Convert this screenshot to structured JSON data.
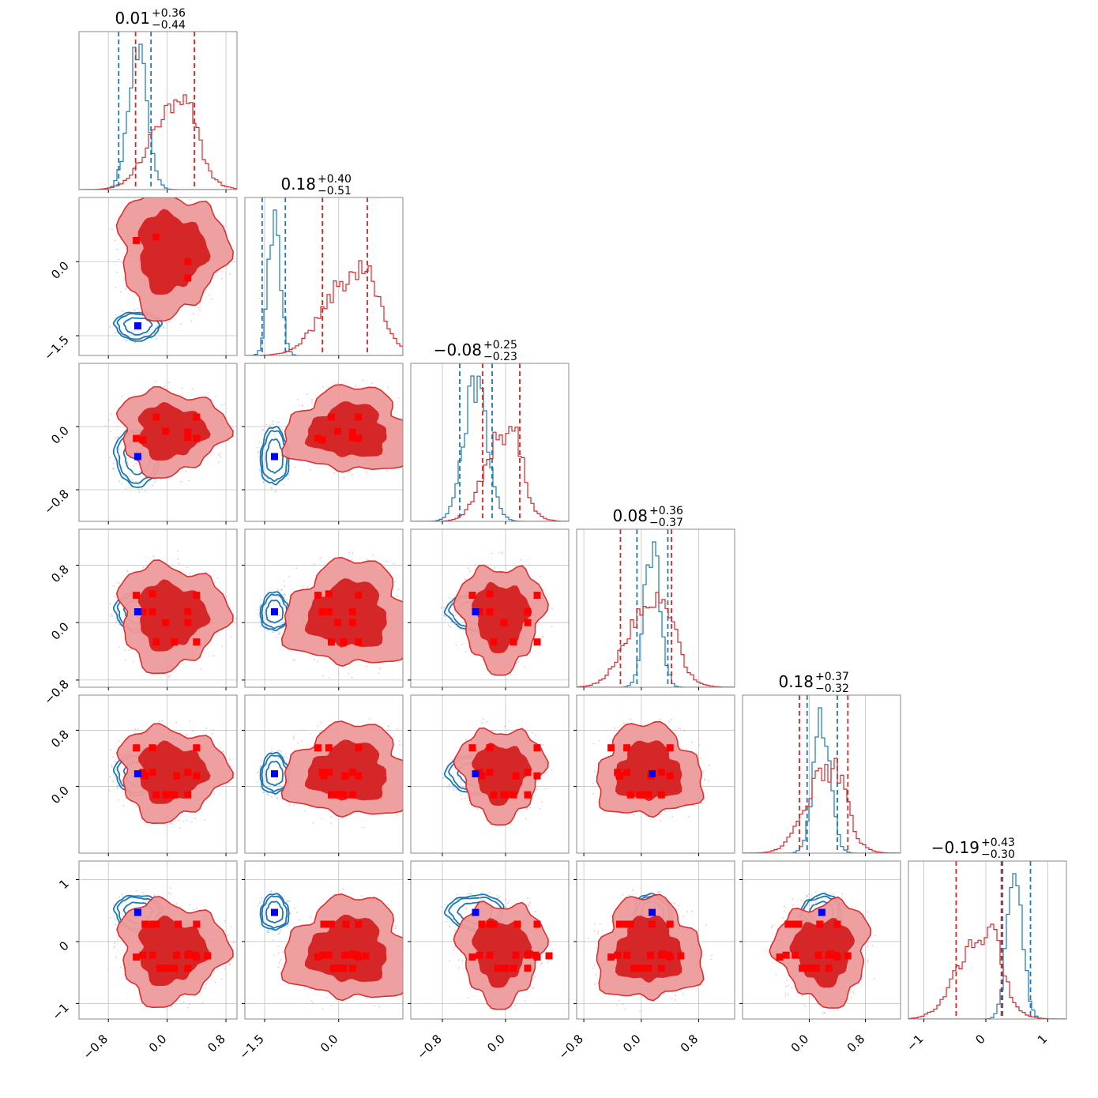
{
  "colors": {
    "blue": "#1f77b4",
    "blue_marker": "#0000ff",
    "red": "#d62728",
    "red_fill_light": "#ee9a9a",
    "red_fill_dark": "#d62728",
    "grid": "#c0c0c0",
    "frame": "#888888"
  },
  "chart_data": {
    "type": "corner",
    "n_params": 6,
    "titles": [
      {
        "main": "0.01",
        "plus": "+0.36",
        "minus": "−0.44"
      },
      {
        "main": "0.18",
        "plus": "+0.40",
        "minus": "−0.51"
      },
      {
        "main": "−0.08",
        "plus": "+0.25",
        "minus": "−0.23"
      },
      {
        "main": "0.08",
        "plus": "+0.36",
        "minus": "−0.37"
      },
      {
        "main": "0.18",
        "plus": "+0.37",
        "minus": "−0.32"
      },
      {
        "main": "−0.19",
        "plus": "+0.43",
        "minus": "−0.30"
      }
    ],
    "axes": [
      {
        "range": [
          -1.2,
          0.95
        ],
        "ticks": [
          -0.8,
          0.0,
          0.8
        ],
        "tick_labels": [
          "−0.8",
          "0.0",
          "0.8"
        ]
      },
      {
        "range": [
          -1.9,
          1.3
        ],
        "ticks": [
          -1.5,
          0.0
        ],
        "tick_labels": [
          "−1.5",
          "0.0"
        ]
      },
      {
        "range": [
          -1.2,
          0.8
        ],
        "ticks": [
          -0.8,
          0.0
        ],
        "tick_labels": [
          "−0.8",
          "0.0"
        ]
      },
      {
        "range": [
          -0.9,
          1.3
        ],
        "ticks": [
          -0.8,
          0.0,
          0.8
        ],
        "tick_labels": [
          "−0.8",
          "0.0",
          "0.8"
        ]
      },
      {
        "range": [
          -0.95,
          1.3
        ],
        "ticks": [
          0.0,
          0.8
        ],
        "tick_labels": [
          "0.0",
          "0.8"
        ]
      },
      {
        "range": [
          -1.25,
          1.3
        ],
        "ticks": [
          -1,
          0,
          1
        ],
        "tick_labels": [
          "−1",
          "0",
          "1"
        ]
      }
    ],
    "series": [
      {
        "color": "blue",
        "mean": [
          -0.4,
          -1.3,
          -0.38,
          0.15,
          0.18,
          0.47
        ],
        "std": [
          0.13,
          0.12,
          0.15,
          0.11,
          0.12,
          0.12
        ],
        "quantile_lines": [
          [
            -0.66,
            -0.22
          ],
          [
            -1.55,
            -1.08
          ],
          [
            -0.58,
            -0.17
          ],
          [
            -0.06,
            0.37
          ],
          [
            -0.03,
            0.4
          ],
          [
            0.27,
            0.72
          ]
        ],
        "markers": [
          [
            [
              -0.4,
              -1.3
            ]
          ],
          [
            [
              -0.4,
              -0.38
            ],
            [
              -1.3,
              -0.38
            ]
          ],
          [
            [
              -0.4,
              0.15
            ],
            [
              -1.3,
              0.15
            ],
            [
              -0.38,
              0.15
            ]
          ],
          [
            [
              -0.4,
              0.18
            ],
            [
              -1.3,
              0.18
            ],
            [
              -0.38,
              0.18
            ],
            [
              0.15,
              0.18
            ]
          ],
          [
            [
              -0.4,
              0.47
            ],
            [
              -1.3,
              0.47
            ],
            [
              -0.38,
              0.47
            ],
            [
              0.15,
              0.47
            ],
            [
              0.18,
              0.47
            ]
          ]
        ]
      },
      {
        "color": "red",
        "mean": [
          0.05,
          0.2,
          -0.06,
          0.1,
          0.2,
          -0.15
        ],
        "std": [
          0.3,
          0.52,
          0.22,
          0.3,
          0.27,
          0.34
        ],
        "quantile_lines": [
          [
            -0.43,
            0.37
          ],
          [
            -0.33,
            0.58
          ],
          [
            -0.29,
            0.18
          ],
          [
            -0.29,
            0.42
          ],
          [
            -0.14,
            0.55
          ],
          [
            -0.48,
            0.25
          ]
        ],
        "markers": [
          [
            [
              -0.42,
              0.43
            ],
            [
              -0.15,
              0.5
            ],
            [
              0.28,
              0.0
            ],
            [
              0.28,
              -0.33
            ]
          ],
          [
            [
              -0.42,
              -0.15
            ],
            [
              -0.15,
              0.12
            ],
            [
              0.28,
              -0.07
            ],
            [
              0.28,
              -0.14
            ],
            [
              -0.33,
              -0.17
            ],
            [
              -0.02,
              -0.06
            ],
            [
              0.4,
              -0.15
            ],
            [
              0.4,
              0.12
            ]
          ],
          [
            [
              -0.42,
              0.38
            ],
            [
              -0.15,
              -0.27
            ],
            [
              0.28,
              0.0
            ],
            [
              0.28,
              0.15
            ],
            [
              -0.33,
              0.15
            ],
            [
              -0.02,
              0.0
            ],
            [
              0.4,
              0.38
            ],
            [
              0.4,
              -0.27
            ],
            [
              -0.2,
              0.4
            ],
            [
              -0.2,
              0.15
            ],
            [
              0.1,
              -0.27
            ]
          ],
          [
            [
              -0.42,
              0.55
            ],
            [
              -0.15,
              -0.12
            ],
            [
              0.28,
              0.2
            ],
            [
              0.28,
              -0.12
            ],
            [
              -0.33,
              0.2
            ],
            [
              -0.02,
              -0.12
            ],
            [
              0.4,
              0.55
            ],
            [
              0.4,
              0.15
            ],
            [
              -0.2,
              0.2
            ],
            [
              -0.2,
              0.55
            ],
            [
              0.1,
              -0.12
            ],
            [
              0.13,
              0.15
            ],
            [
              -0.3,
              0.15
            ],
            [
              0.0,
              -0.12
            ],
            [
              0.13,
              0.15
            ]
          ],
          [
            [
              -0.42,
              -0.25
            ],
            [
              -0.15,
              0.28
            ],
            [
              0.28,
              -0.43
            ],
            [
              0.28,
              -0.22
            ],
            [
              -0.33,
              -0.22
            ],
            [
              -0.02,
              -0.43
            ],
            [
              0.4,
              0.28
            ],
            [
              0.4,
              -0.25
            ],
            [
              -0.2,
              0.28
            ],
            [
              -0.2,
              -0.22
            ],
            [
              0.1,
              -0.43
            ],
            [
              0.13,
              -0.22
            ],
            [
              -0.3,
              0.28
            ],
            [
              0.0,
              -0.43
            ],
            [
              0.13,
              -0.22
            ],
            [
              0.38,
              -0.22
            ],
            [
              -0.1,
              -0.43
            ],
            [
              0.15,
              0.28
            ],
            [
              0.3,
              -0.2
            ],
            [
              0.55,
              -0.23
            ]
          ]
        ]
      }
    ]
  }
}
